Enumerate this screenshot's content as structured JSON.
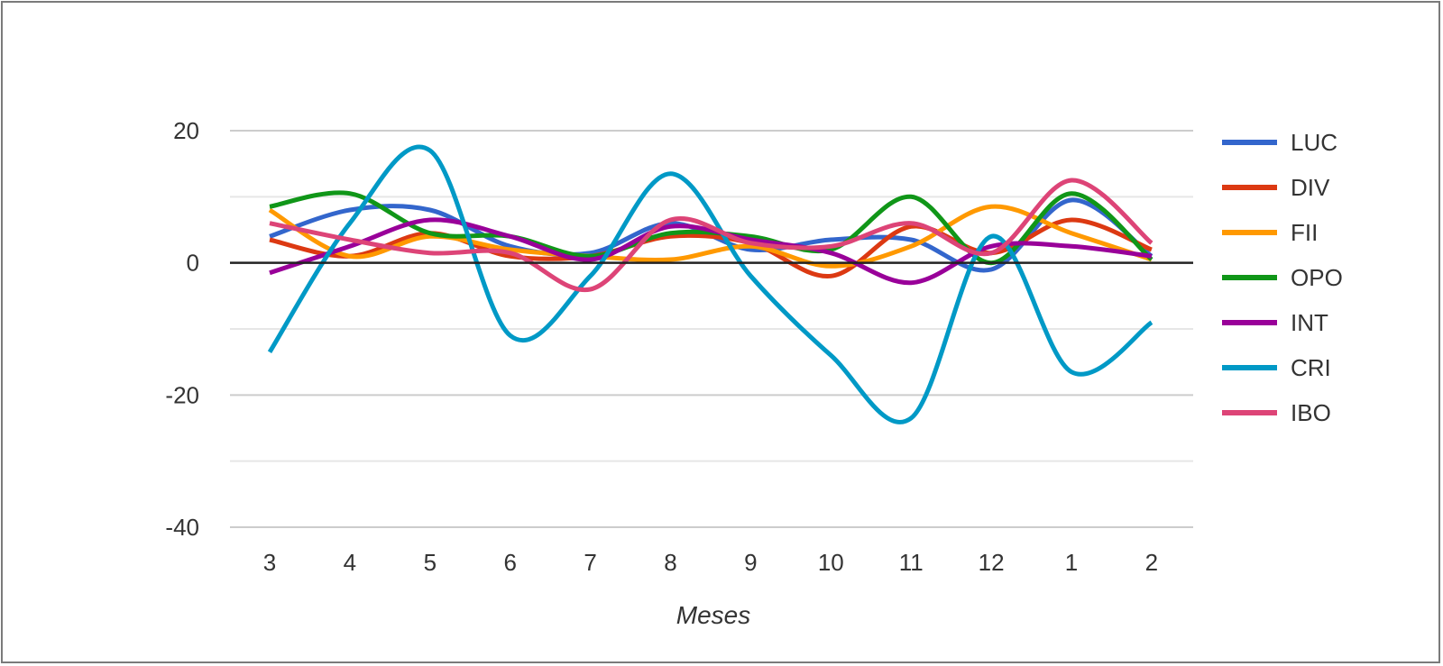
{
  "chart_data": {
    "type": "line",
    "title": "",
    "xlabel": "Meses",
    "ylabel": "",
    "categories": [
      "3",
      "4",
      "5",
      "6",
      "7",
      "8",
      "9",
      "10",
      "11",
      "12",
      "1",
      "2"
    ],
    "ylim": [
      -40,
      20
    ],
    "yticks": [
      20,
      0,
      -20,
      -40
    ],
    "ygrid_step": 10,
    "grid": true,
    "legend_position": "right",
    "series": [
      {
        "name": "LUC",
        "color": "#3366cc",
        "values": [
          4,
          8,
          8,
          2.5,
          1.5,
          6,
          2,
          3.5,
          3.5,
          -1,
          9.5,
          1
        ]
      },
      {
        "name": "DIV",
        "color": "#dc3912",
        "values": [
          3.5,
          1,
          4.5,
          1,
          1,
          4,
          3,
          -2,
          5.5,
          1.5,
          6.5,
          2
        ]
      },
      {
        "name": "FII",
        "color": "#ff9900",
        "values": [
          8,
          1,
          4,
          2,
          1,
          0.5,
          2.5,
          -0.5,
          2.5,
          8.5,
          4.5,
          0.5
        ]
      },
      {
        "name": "OPO",
        "color": "#109618",
        "values": [
          8.5,
          10.5,
          4.5,
          4,
          1,
          4.5,
          4,
          2,
          10,
          0,
          10.5,
          0.5
        ]
      },
      {
        "name": "INT",
        "color": "#990099",
        "values": [
          -1.5,
          2.5,
          6.5,
          4,
          0.5,
          5.5,
          3.5,
          1.5,
          -3,
          2.5,
          2.5,
          1
        ]
      },
      {
        "name": "CRI",
        "color": "#0099c6",
        "values": [
          -13.5,
          6,
          17,
          -11,
          -2,
          13.5,
          -2,
          -14,
          -23.5,
          4,
          -16.5,
          -9
        ]
      },
      {
        "name": "IBO",
        "color": "#dd4477",
        "values": [
          6,
          3.5,
          1.5,
          1.5,
          -4,
          6.5,
          3,
          2.5,
          6,
          1.5,
          12.5,
          3
        ]
      }
    ]
  }
}
